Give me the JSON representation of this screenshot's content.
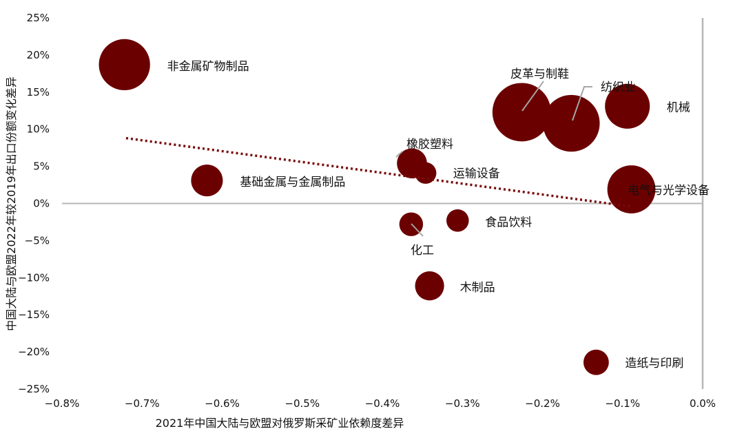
{
  "chart_data": {
    "type": "scatter",
    "title": "",
    "xlabel": "2021年中国大陆与欧盟对俄罗斯采矿业依赖度差异",
    "ylabel": "中国大陆与欧盟2022年较2019年出口份额变化差异",
    "xlim": [
      -0.008,
      0.0
    ],
    "ylim": [
      -0.25,
      0.25
    ],
    "x_ticks": [
      {
        "value": -0.008,
        "label": "−0.8%"
      },
      {
        "value": -0.007,
        "label": "−0.7%"
      },
      {
        "value": -0.006,
        "label": "−0.6%"
      },
      {
        "value": -0.005,
        "label": "−0.5%"
      },
      {
        "value": -0.004,
        "label": "−0.4%"
      },
      {
        "value": -0.003,
        "label": "−0.3%"
      },
      {
        "value": -0.002,
        "label": "−0.2%"
      },
      {
        "value": -0.001,
        "label": "−0.1%"
      },
      {
        "value": 0.0,
        "label": "0.0%"
      }
    ],
    "y_ticks": [
      {
        "value": 0.25,
        "label": "25%"
      },
      {
        "value": 0.2,
        "label": "20%"
      },
      {
        "value": 0.15,
        "label": "15%"
      },
      {
        "value": 0.1,
        "label": "10%"
      },
      {
        "value": 0.05,
        "label": "5%"
      },
      {
        "value": 0.0,
        "label": "0%"
      },
      {
        "value": -0.05,
        "label": "−5%"
      },
      {
        "value": -0.1,
        "label": "−10%"
      },
      {
        "value": -0.15,
        "label": "−15%"
      },
      {
        "value": -0.2,
        "label": "−20%"
      },
      {
        "value": -0.25,
        "label": "−25%"
      }
    ],
    "grid": false,
    "marker_color": "#6b0000",
    "trendline_color": "#7a0a0a",
    "axis_color": "#b7b7b7",
    "leader_color": "#a6a6a6",
    "trendline": {
      "x": [
        -0.0072,
        -0.0009
      ],
      "y": [
        0.088,
        -0.004
      ]
    },
    "points": [
      {
        "label": "非金属矿物制品",
        "x": -0.00722,
        "y": 0.187,
        "size": 13
      },
      {
        "label": "基础金属与金属制品",
        "x": -0.00619,
        "y": 0.031,
        "size": 5
      },
      {
        "label": "橡胶塑料",
        "x": -0.00363,
        "y": 0.054,
        "size": 4.5
      },
      {
        "label": "运输设备",
        "x": -0.00346,
        "y": 0.041,
        "size": 2.3
      },
      {
        "label": "化工",
        "x": -0.00364,
        "y": -0.028,
        "size": 2.8
      },
      {
        "label": "食品饮料",
        "x": -0.00306,
        "y": -0.023,
        "size": 2.5
      },
      {
        "label": "木制品",
        "x": -0.00341,
        "y": -0.111,
        "size": 4.2
      },
      {
        "label": "皮革与制鞋",
        "x": -0.00226,
        "y": 0.123,
        "size": 17
      },
      {
        "label": "纺织业",
        "x": -0.00164,
        "y": 0.108,
        "size": 16
      },
      {
        "label": "机械",
        "x": -0.00094,
        "y": 0.131,
        "size": 10
      },
      {
        "label": "电气与光学设备",
        "x": -0.00089,
        "y": 0.019,
        "size": 11.5
      },
      {
        "label": "造纸与印刷",
        "x": -0.00133,
        "y": -0.214,
        "size": 3.2
      }
    ]
  }
}
